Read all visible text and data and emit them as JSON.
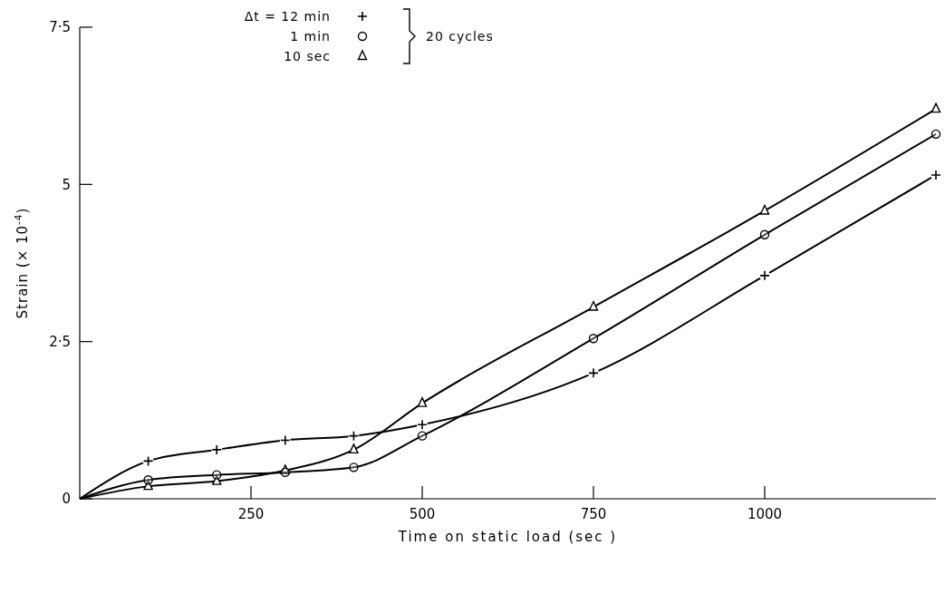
{
  "chart_data": {
    "type": "line",
    "xlabel": "Time on static load (sec )",
    "ylabel": "Strain (× 10$^{-4}$)",
    "xlim": [
      0,
      1250
    ],
    "xticks": [
      250,
      500,
      750,
      1000
    ],
    "ylim": [
      0,
      7.5
    ],
    "yticks": [
      0,
      {
        "value": 2.5,
        "label": "2·5"
      },
      5,
      {
        "value": 7.5,
        "label": "7·5"
      }
    ],
    "legend": "top left",
    "line_style": "solid",
    "annotations": [
      "20 cycles"
    ],
    "series": [
      {
        "name": "Δt = 12 min",
        "color": "#000000",
        "marker": "cross",
        "x": [
          0,
          100,
          200,
          300,
          400,
          500,
          750,
          1000,
          1250
        ],
        "values": [
          0,
          0.6,
          0.78,
          0.93,
          1.0,
          1.18,
          2.0,
          3.55,
          5.15
        ]
      },
      {
        "name": "1 min",
        "color": "#000000",
        "marker": "circle",
        "x": [
          0,
          100,
          200,
          300,
          400,
          500,
          750,
          1000,
          1250
        ],
        "values": [
          0,
          0.3,
          0.38,
          0.42,
          0.5,
          1.0,
          2.55,
          4.2,
          5.8
        ]
      },
      {
        "name": "10 sec",
        "color": "#000000",
        "marker": "triangle",
        "x": [
          0,
          100,
          200,
          300,
          400,
          500,
          750,
          1000,
          1250
        ],
        "values": [
          0,
          0.2,
          0.28,
          0.45,
          0.78,
          1.52,
          3.05,
          4.58,
          6.2
        ]
      }
    ]
  }
}
